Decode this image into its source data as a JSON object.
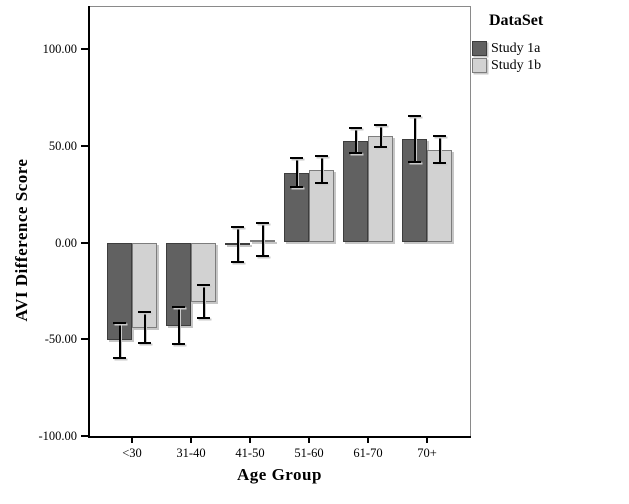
{
  "chart_data": {
    "type": "bar",
    "title": "",
    "xlabel": "Age Group",
    "ylabel": "AVI Difference Score",
    "categories": [
      "<30",
      "31-40",
      "41-50",
      "51-60",
      "61-70",
      "70+"
    ],
    "series": [
      {
        "name": "Study 1a",
        "color": "#616161",
        "border_color": "#3d3d3d",
        "values": [
          -50.5,
          -43,
          -1,
          36,
          52.5,
          53.5
        ],
        "error_bars": [
          9,
          9.5,
          9,
          7.5,
          6.5,
          12
        ]
      },
      {
        "name": "Study 1b",
        "color": "#d2d2d2",
        "border_color": "#7d7d7d",
        "values": [
          -44,
          -30.5,
          1.5,
          37.5,
          55,
          48
        ],
        "error_bars": [
          8,
          8.5,
          8.5,
          7,
          5.5,
          7
        ]
      }
    ],
    "y_axis": {
      "ticks": [
        100,
        50,
        0,
        -50,
        -100
      ],
      "tick_labels": [
        "100.00",
        "50.00",
        "0.00",
        "-50.00",
        "-100.00"
      ],
      "range": [
        -101,
        122
      ]
    },
    "grid": false,
    "error_bars_shown": true,
    "legend": {
      "title": "DataSet",
      "position": "top-right-outside"
    }
  },
  "colors": {
    "background": "#ffffff",
    "axis": "#000000",
    "frame": "#8a8a8a",
    "shadow": "#c6c6c6",
    "text": "#000000"
  }
}
